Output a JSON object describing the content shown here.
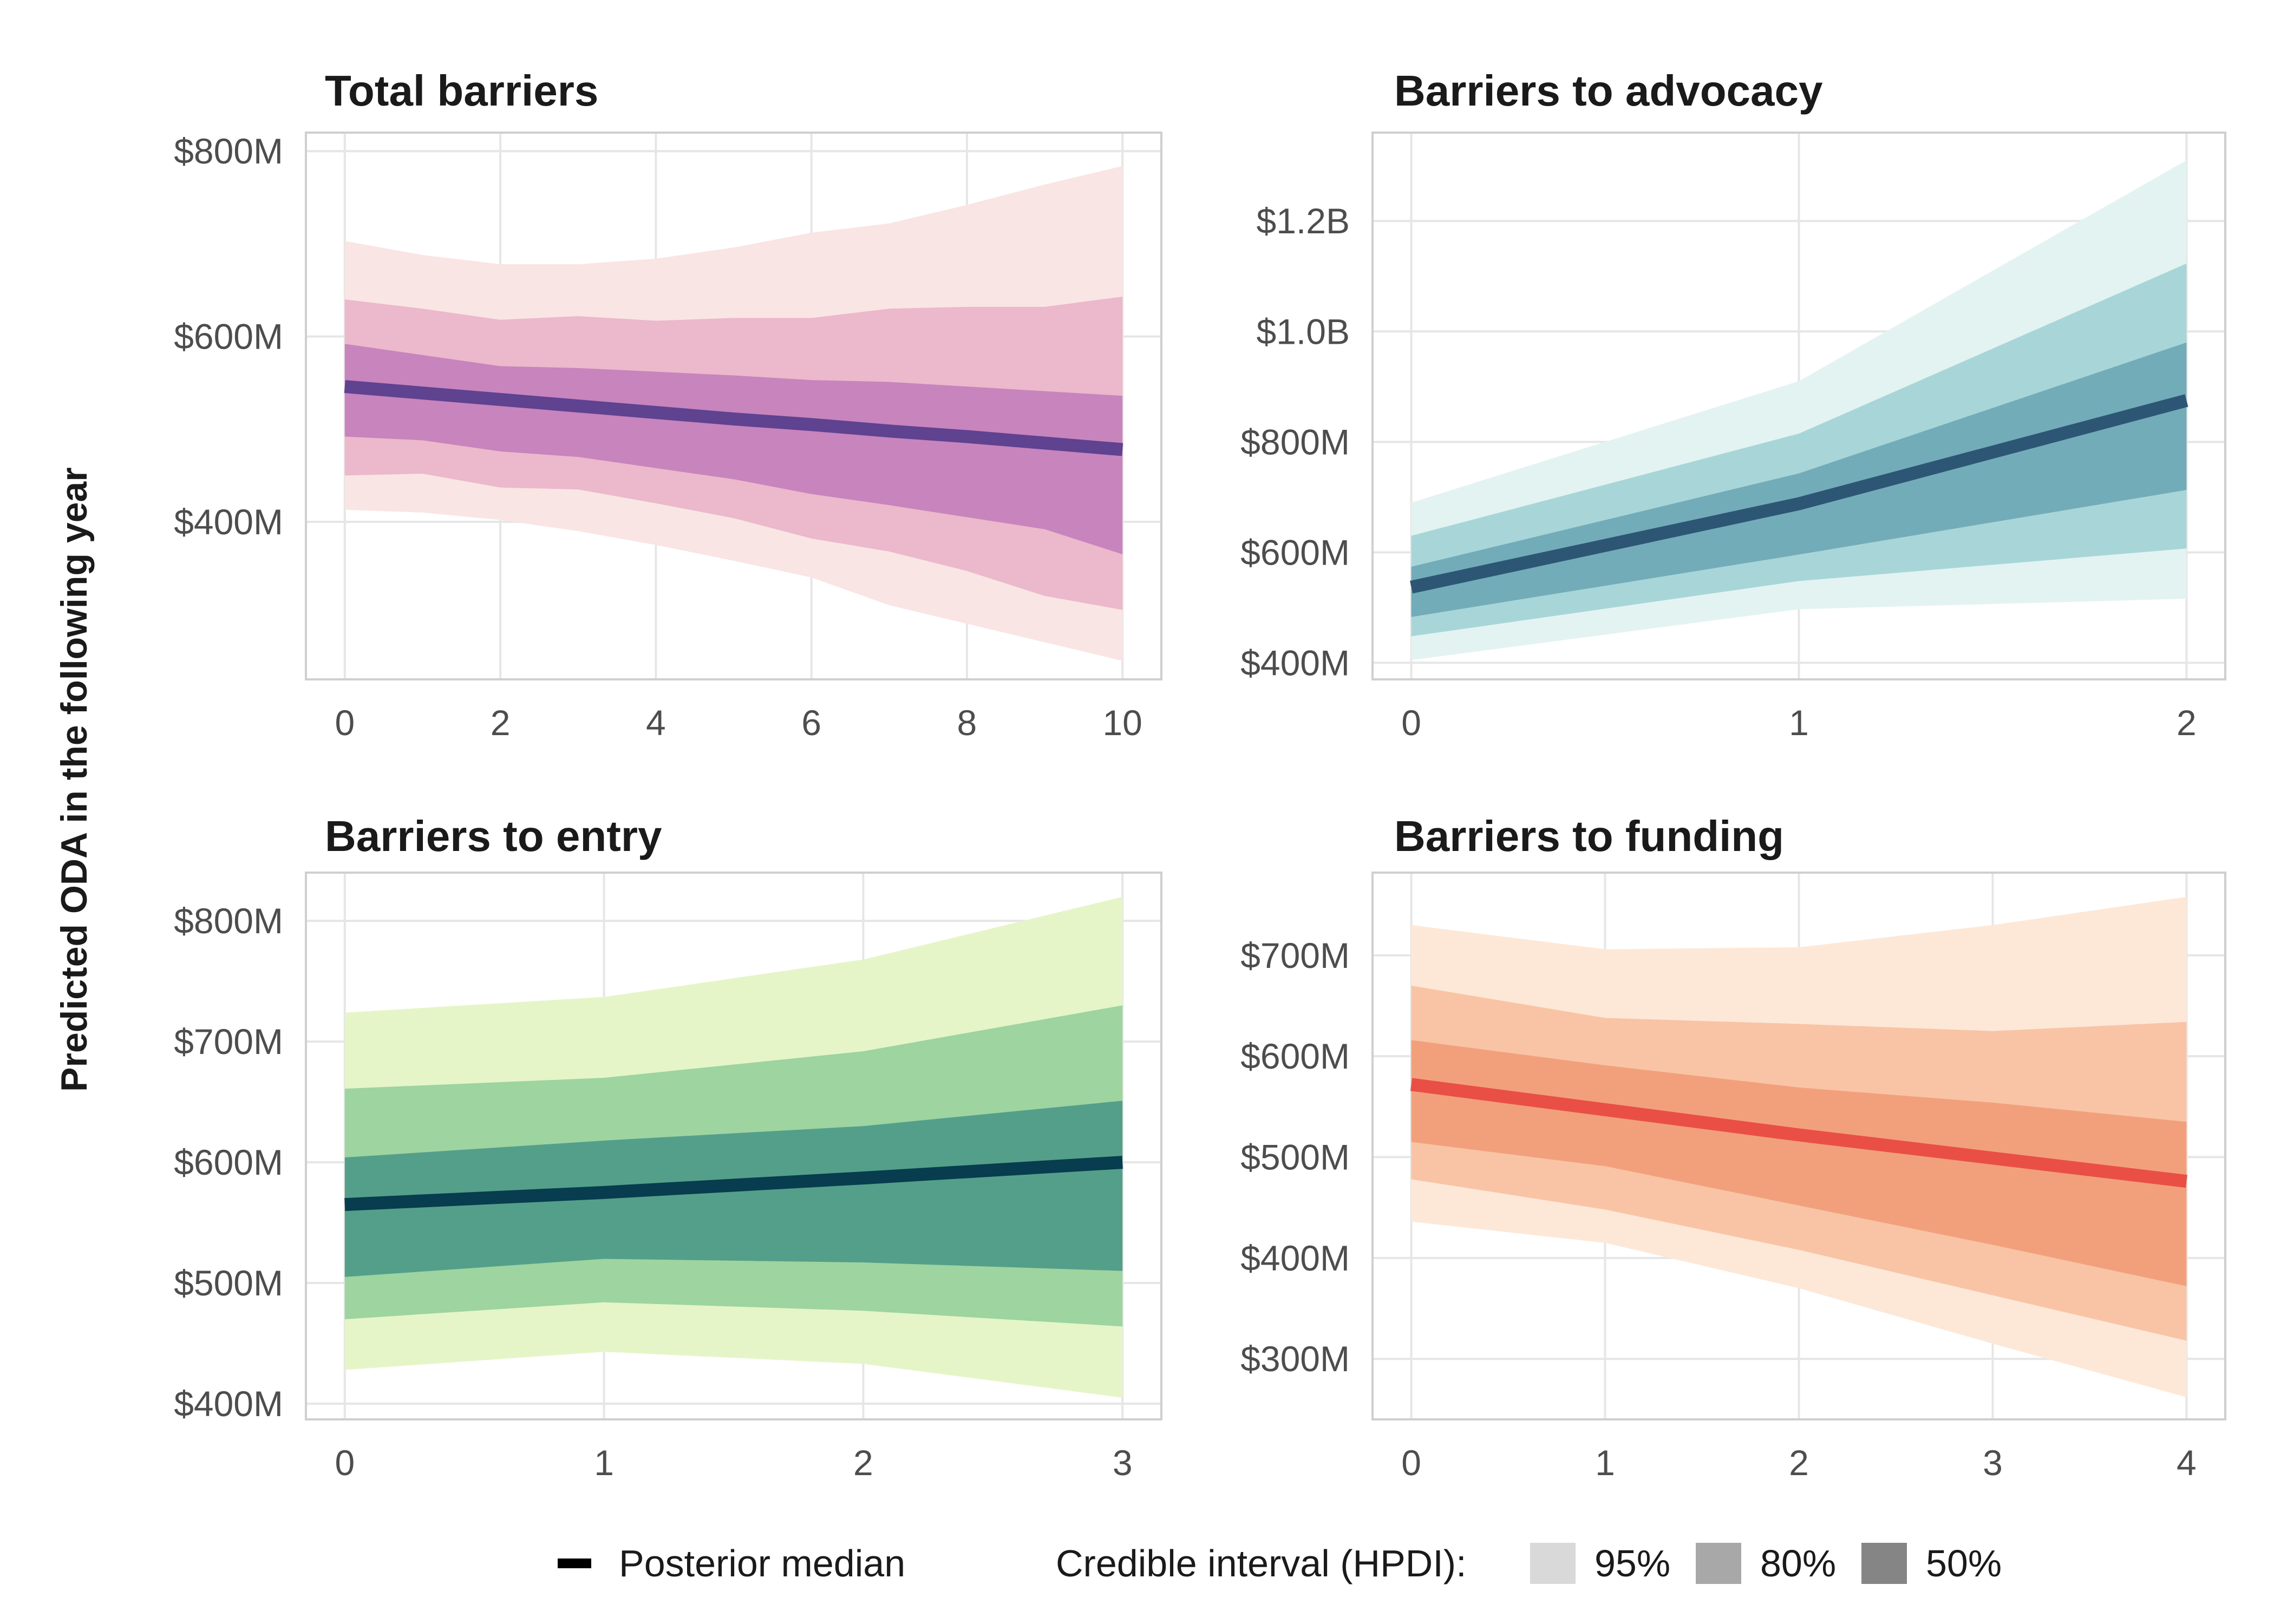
{
  "y_axis_title": "Predicted ODA in the following year",
  "legend": {
    "median_label": "Posterior median",
    "interval_title": "Credible interval (HPDI):",
    "levels": [
      {
        "label": "95%",
        "color": "#d9d9d9"
      },
      {
        "label": "80%",
        "color": "#a8a8a8"
      },
      {
        "label": "50%",
        "color": "#858585"
      }
    ]
  },
  "chart_data": [
    {
      "type": "area",
      "title": "Total barriers",
      "x": [
        0,
        1,
        2,
        3,
        4,
        5,
        6,
        7,
        8,
        9,
        10
      ],
      "xticks": [
        0,
        2,
        4,
        6,
        8,
        10
      ],
      "xlim": [
        -0.5,
        10.5
      ],
      "yticks": [
        400,
        600,
        800
      ],
      "ytick_labels": [
        "$400M",
        "$600M",
        "$800M"
      ],
      "ylim": [
        230,
        820
      ],
      "colors": {
        "band95": "#f9e5e4",
        "band80": "#ecb8cb",
        "band50": "#c784bd",
        "median": "#5f4290"
      },
      "median": [
        546,
        539,
        532,
        525,
        518,
        511,
        505,
        498,
        492,
        485,
        478
      ],
      "band95": {
        "lower": [
          413,
          410,
          402,
          390,
          375,
          358,
          340,
          310,
          290,
          270,
          250
        ],
        "upper": [
          703,
          688,
          678,
          678,
          684,
          696,
          712,
          722,
          742,
          764,
          784
        ]
      },
      "band80": {
        "lower": [
          450,
          452,
          437,
          435,
          420,
          404,
          382,
          368,
          347,
          320,
          305
        ],
        "upper": [
          640,
          630,
          618,
          622,
          617,
          620,
          620,
          630,
          632,
          632,
          643
        ]
      },
      "band50": {
        "lower": [
          492,
          488,
          476,
          470,
          458,
          446,
          430,
          418,
          405,
          392,
          365
        ],
        "upper": [
          592,
          580,
          568,
          566,
          562,
          558,
          553,
          551,
          546,
          541,
          536
        ]
      }
    },
    {
      "type": "area",
      "title": "Barriers to advocacy",
      "x": [
        0,
        1,
        2
      ],
      "xticks": [
        0,
        1,
        2
      ],
      "xlim": [
        -0.1,
        2.1
      ],
      "yticks": [
        400,
        600,
        800,
        1000,
        1200
      ],
      "ytick_labels": [
        "$400M",
        "$600M",
        "$800M",
        "$1.0B",
        "$1.2B"
      ],
      "ylim": [
        370,
        1360
      ],
      "colors": {
        "band95": "#e3f3f1",
        "band80": "#a8d6d8",
        "band50": "#72acb8",
        "median": "#2d5675"
      },
      "median": [
        537,
        688,
        875
      ],
      "band95": {
        "lower": [
          405,
          497,
          516
        ],
        "upper": [
          690,
          910,
          1310
        ]
      },
      "band80": {
        "lower": [
          448,
          548,
          607
        ],
        "upper": [
          630,
          815,
          1123
        ]
      },
      "band50": {
        "lower": [
          483,
          596,
          713
        ],
        "upper": [
          574,
          743,
          980
        ]
      }
    },
    {
      "type": "area",
      "title": "Barriers to entry",
      "x": [
        0,
        1,
        2,
        3
      ],
      "xticks": [
        0,
        1,
        2,
        3
      ],
      "xlim": [
        -0.15,
        3.15
      ],
      "yticks": [
        400,
        500,
        600,
        700,
        800
      ],
      "ytick_labels": [
        "$400M",
        "$500M",
        "$600M",
        "$700M",
        "$800M"
      ],
      "ylim": [
        387,
        840
      ],
      "colors": {
        "band95": "#e5f5c8",
        "band80": "#9dd4a0",
        "band50": "#549f8a",
        "median": "#073d4e"
      },
      "median": [
        565,
        575,
        587,
        600
      ],
      "band95": {
        "lower": [
          428,
          443,
          433,
          405
        ],
        "upper": [
          724,
          737,
          768,
          820
        ]
      },
      "band80": {
        "lower": [
          470,
          484,
          477,
          464
        ],
        "upper": [
          661,
          670,
          692,
          730
        ]
      },
      "band50": {
        "lower": [
          505,
          520,
          517,
          510
        ],
        "upper": [
          604,
          618,
          630,
          651
        ]
      }
    },
    {
      "type": "area",
      "title": "Barriers to funding",
      "x": [
        0,
        1,
        2,
        3,
        4
      ],
      "xticks": [
        0,
        1,
        2,
        3,
        4
      ],
      "xlim": [
        -0.2,
        4.2
      ],
      "yticks": [
        300,
        400,
        500,
        600,
        700
      ],
      "ytick_labels": [
        "$300M",
        "$400M",
        "$500M",
        "$600M",
        "$700M"
      ],
      "ylim": [
        240,
        782
      ],
      "colors": {
        "band95": "#fde8d8",
        "band80": "#f9c4a5",
        "band50": "#f2a07c",
        "median": "#e94f45"
      },
      "median": [
        572,
        547,
        522,
        499,
        476
      ],
      "band95": {
        "lower": [
          436,
          415,
          370,
          315,
          262
        ],
        "upper": [
          730,
          706,
          708,
          730,
          758
        ]
      },
      "band80": {
        "lower": [
          478,
          448,
          408,
          363,
          318
        ],
        "upper": [
          670,
          638,
          632,
          625,
          634
        ]
      },
      "band50": {
        "lower": [
          515,
          491,
          452,
          413,
          372
        ],
        "upper": [
          616,
          591,
          569,
          554,
          535
        ]
      }
    }
  ]
}
